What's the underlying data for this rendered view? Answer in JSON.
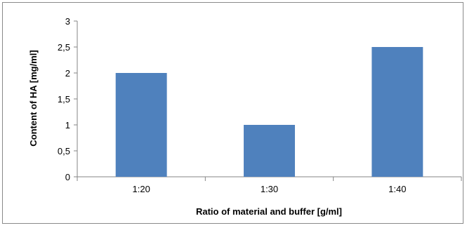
{
  "chart_data": {
    "type": "bar",
    "title": "",
    "xlabel": "Ratio of material and buffer  [g/ml]",
    "ylabel": "Content of HA [mg/ml]",
    "categories": [
      "1:20",
      "1:30",
      "1:40"
    ],
    "series": [
      {
        "values": [
          2,
          1,
          2.5
        ]
      }
    ],
    "ylim": [
      0,
      3
    ],
    "yticks": [
      0,
      0.5,
      1,
      1.5,
      2,
      2.5,
      3
    ],
    "ytick_labels": [
      "0",
      "0,5",
      "1",
      "1,5",
      "2",
      "2,5",
      "3"
    ],
    "grid": false,
    "legend": "none",
    "colors": {
      "bar": "#4f81bd",
      "axis": "#868686"
    }
  }
}
